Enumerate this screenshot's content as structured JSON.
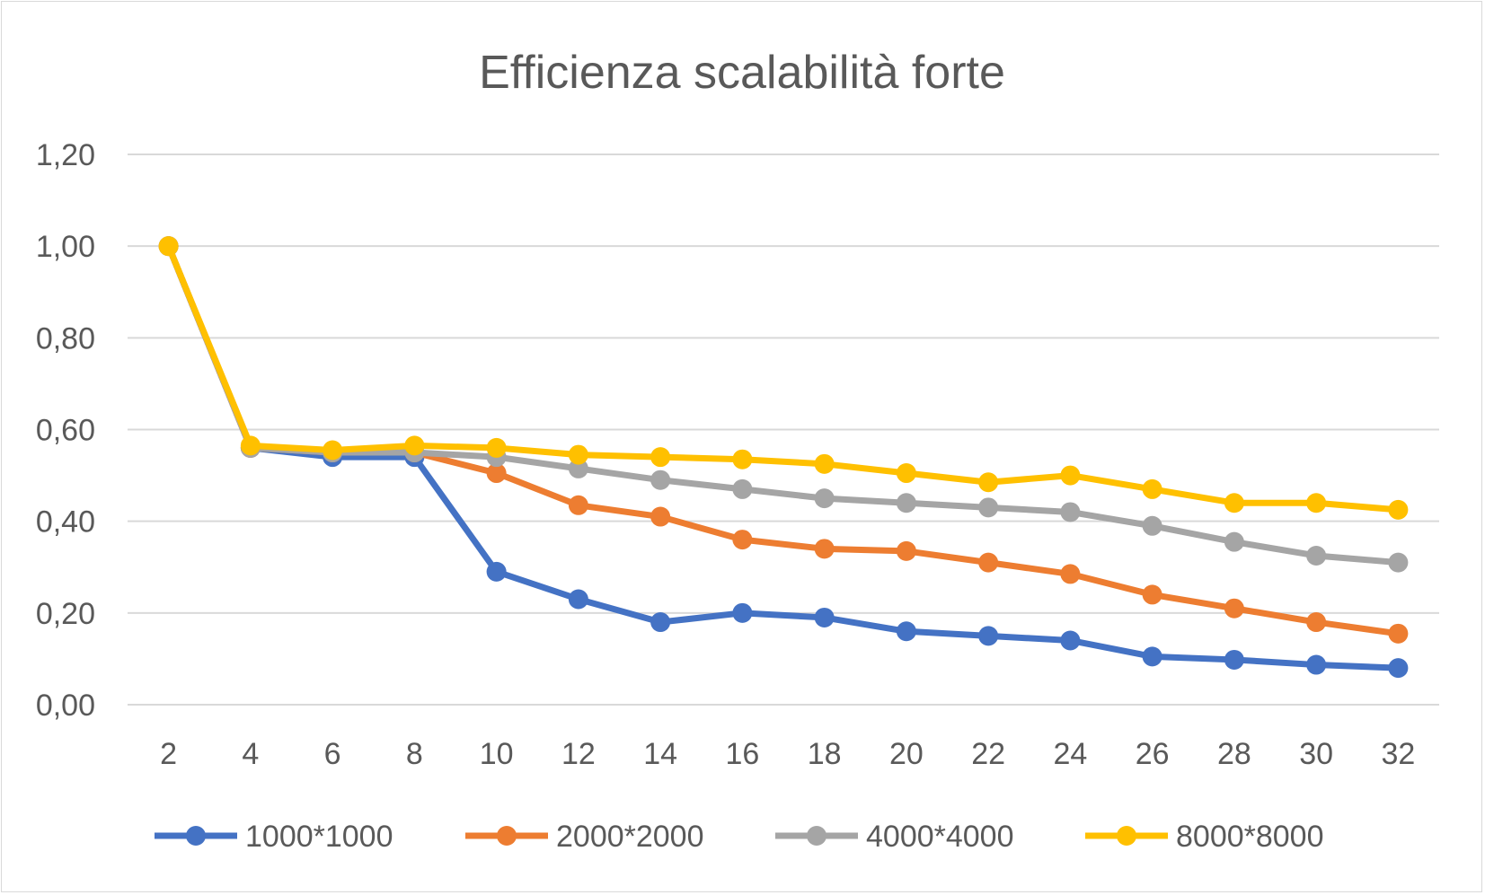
{
  "chart_data": {
    "type": "line",
    "title": "Efficienza scalabilità forte",
    "xlabel": "",
    "ylabel": "",
    "categories": [
      "2",
      "4",
      "6",
      "8",
      "10",
      "12",
      "14",
      "16",
      "18",
      "20",
      "22",
      "24",
      "26",
      "28",
      "30",
      "32"
    ],
    "ylim": [
      0,
      1.2
    ],
    "yticks": [
      "0,00",
      "0,20",
      "0,40",
      "0,60",
      "0,80",
      "1,00",
      "1,20"
    ],
    "grid": true,
    "legend_position": "bottom",
    "series": [
      {
        "name": "1000*1000",
        "color": "#4472C4",
        "values": [
          1.0,
          0.56,
          0.54,
          0.54,
          0.29,
          0.23,
          0.18,
          0.2,
          0.19,
          0.16,
          0.15,
          0.14,
          0.105,
          0.098,
          0.087,
          0.08
        ]
      },
      {
        "name": "2000*2000",
        "color": "#ED7D31",
        "values": [
          1.0,
          0.56,
          0.55,
          0.55,
          0.505,
          0.435,
          0.41,
          0.36,
          0.34,
          0.335,
          0.31,
          0.285,
          0.24,
          0.21,
          0.18,
          0.155
        ]
      },
      {
        "name": "4000*4000",
        "color": "#A5A5A5",
        "values": [
          1.0,
          0.56,
          0.55,
          0.55,
          0.54,
          0.515,
          0.49,
          0.47,
          0.45,
          0.44,
          0.43,
          0.42,
          0.39,
          0.355,
          0.325,
          0.31
        ]
      },
      {
        "name": "8000*8000",
        "color": "#FFC000",
        "values": [
          1.0,
          0.565,
          0.555,
          0.565,
          0.56,
          0.545,
          0.54,
          0.535,
          0.525,
          0.505,
          0.485,
          0.5,
          0.47,
          0.44,
          0.44,
          0.425
        ]
      }
    ]
  }
}
